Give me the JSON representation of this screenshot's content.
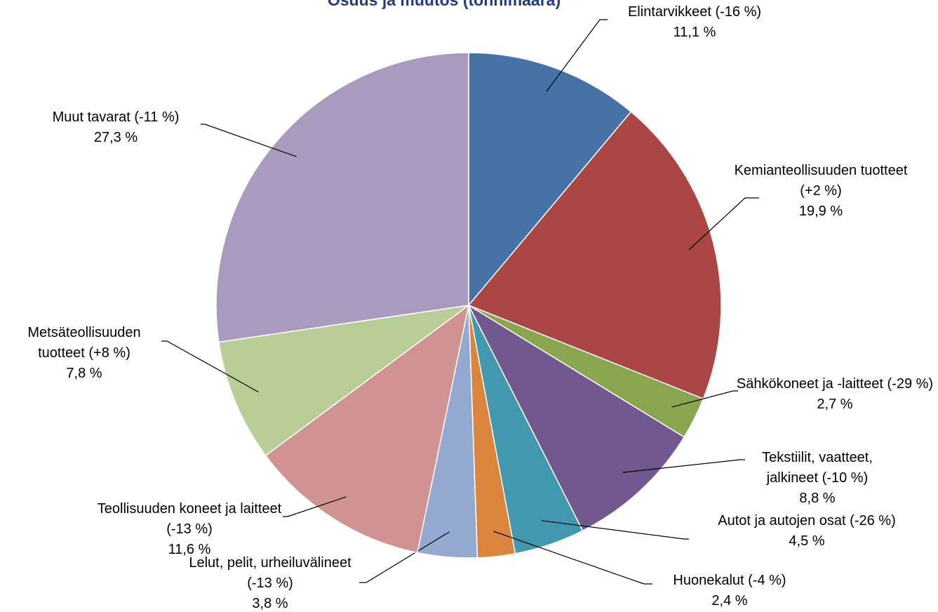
{
  "chart_data": {
    "type": "pie",
    "title": "Osuus ja muutos (tonnimäärä)",
    "categories": [
      "Elintarvikkeet (-16 %)",
      "Kemianteollisuuden tuotteet (+2 %)",
      "Sähkökoneet ja -laitteet (-29 %)",
      "Tekstiilit, vaatteet, jalkineet (-10 %)",
      "Autot ja autojen osat (-26 %)",
      "Huonekalut (-4 %)",
      "Lelut, pelit, urheiluvälineet (-13 %)",
      "Teollisuuden koneet ja laitteet (-13 %)",
      "Metsäteollisuuden tuotteet (+8 %)",
      "Muut tavarat (-11 %)"
    ],
    "values": [
      11.1,
      19.9,
      2.7,
      8.8,
      4.5,
      2.4,
      3.8,
      11.6,
      7.8,
      27.3
    ],
    "value_labels": [
      "11,1 %",
      "19,9 %",
      "2,7 %",
      "8,8 %",
      "4,5 %",
      "2,4 %",
      "3,8 %",
      "11,6 %",
      "7,8 %",
      "27,3 %"
    ],
    "colors": [
      "#4572a7",
      "#aa4643",
      "#89a54e",
      "#71588f",
      "#4198af",
      "#db843d",
      "#93a9cf",
      "#d19392",
      "#b9cd96",
      "#a99bbd"
    ]
  }
}
